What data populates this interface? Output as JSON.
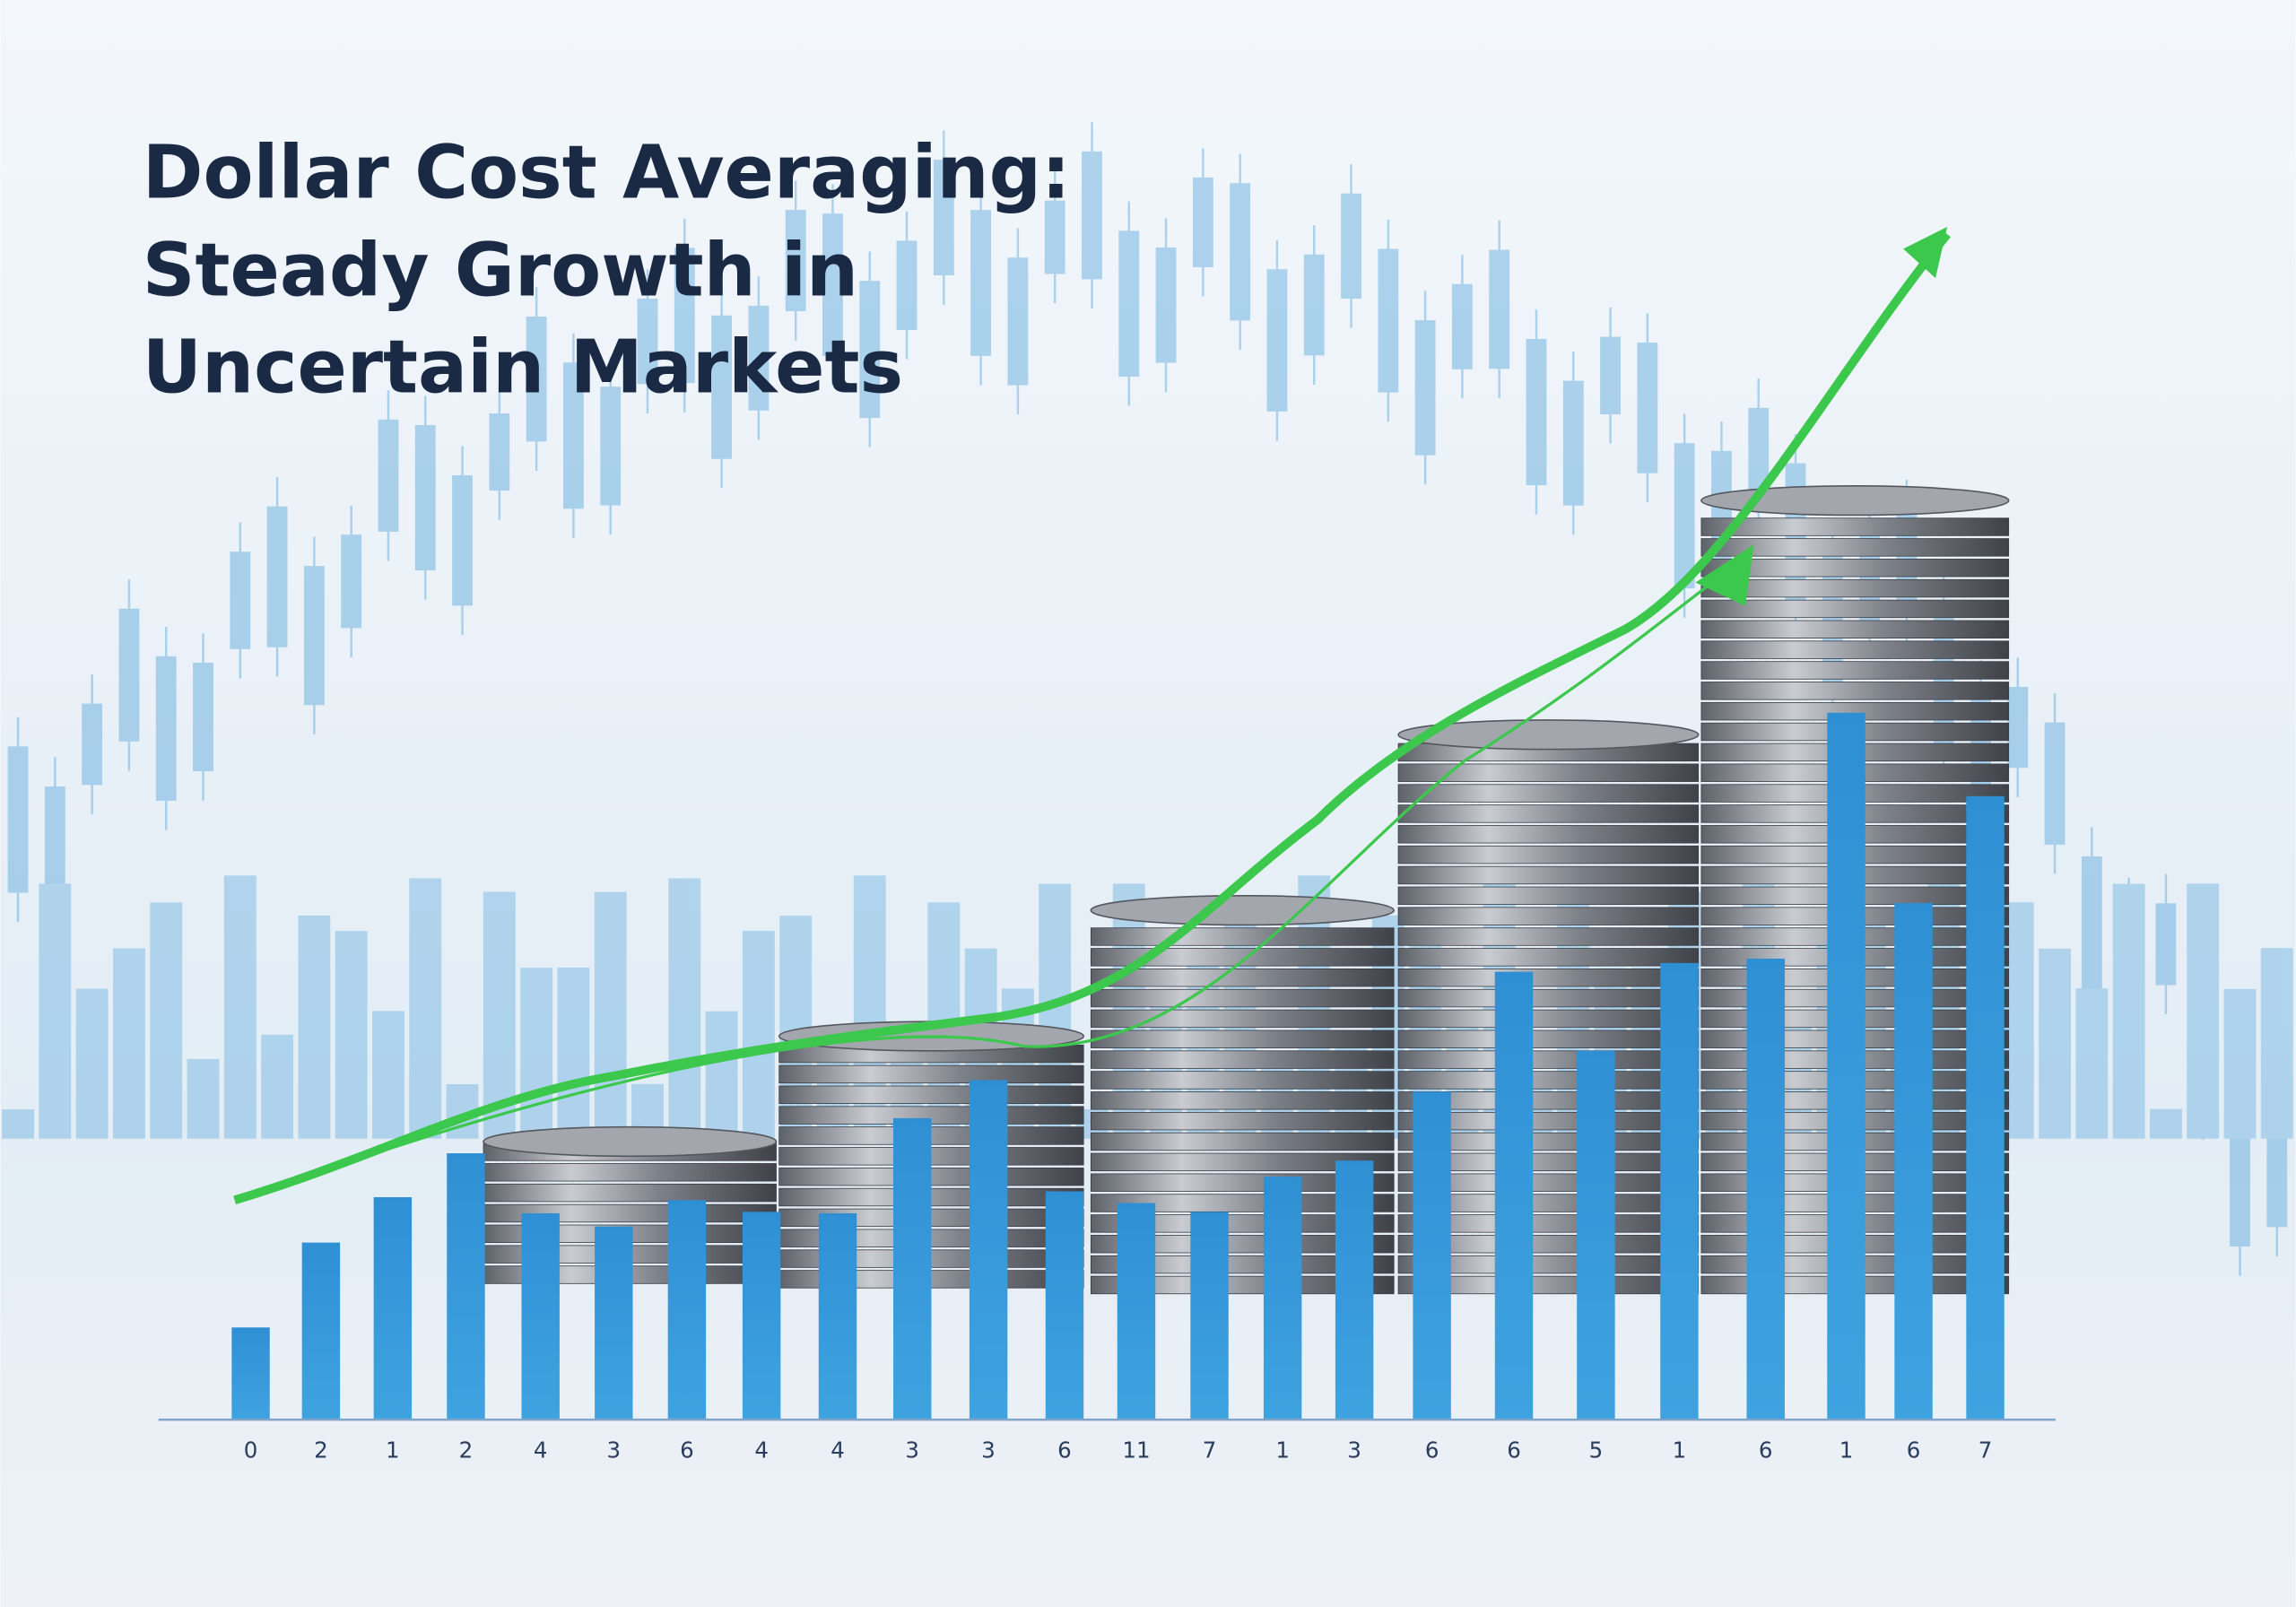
{
  "title": [
    "Dollar Cost Averaging:",
    "Steady Growth in",
    "Uncertain Markets"
  ],
  "axis_labels": [
    "0",
    "2",
    "1",
    "2",
    "4",
    "3",
    "6",
    "4",
    "4",
    "3",
    "3",
    "6",
    "11",
    "7",
    "1",
    "3",
    "6",
    "6",
    "5",
    "1",
    "6",
    "1",
    "6",
    "7"
  ]
}
